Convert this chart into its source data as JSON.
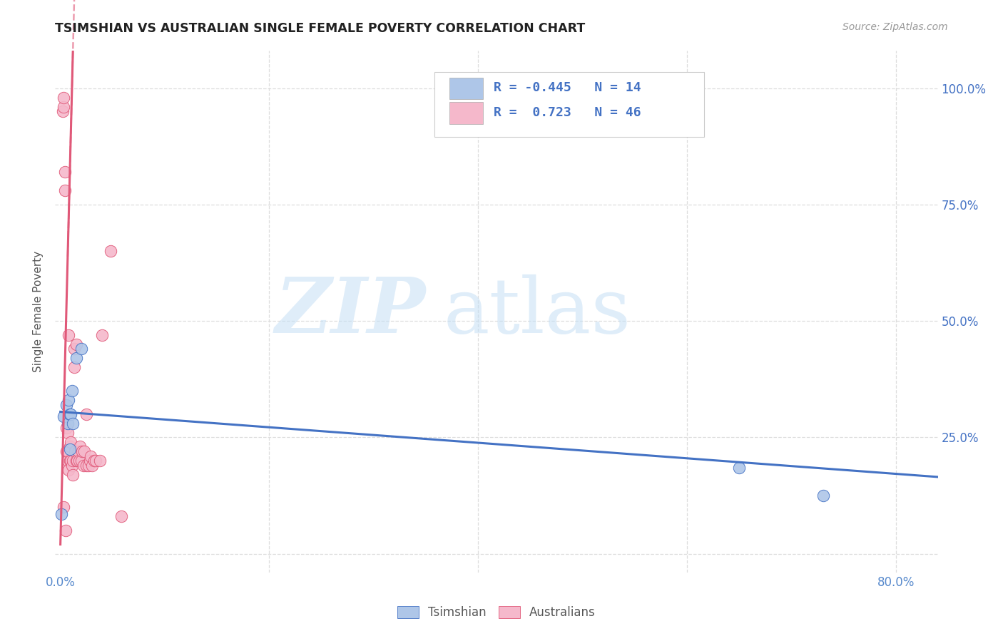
{
  "title": "TSIMSHIAN VS AUSTRALIAN SINGLE FEMALE POVERTY CORRELATION CHART",
  "source": "Source: ZipAtlas.com",
  "ylabel_label": "Single Female Poverty",
  "xlim": [
    -0.005,
    0.84
  ],
  "ylim": [
    -0.04,
    1.08
  ],
  "tsimshian_color": "#aec6e8",
  "australian_color": "#f5b8cb",
  "trend_blue": "#4472c4",
  "trend_pink": "#e05878",
  "legend_R_blue": "-0.445",
  "legend_N_blue": "14",
  "legend_R_pink": "0.723",
  "legend_N_pink": "46",
  "tsimshian_x": [
    0.001,
    0.003,
    0.006,
    0.007,
    0.008,
    0.009,
    0.009,
    0.01,
    0.011,
    0.012,
    0.015,
    0.02,
    0.65,
    0.73
  ],
  "tsimshian_y": [
    0.085,
    0.295,
    0.32,
    0.28,
    0.33,
    0.3,
    0.225,
    0.3,
    0.35,
    0.28,
    0.42,
    0.44,
    0.185,
    0.125
  ],
  "australian_x": [
    0.002,
    0.003,
    0.003,
    0.004,
    0.005,
    0.006,
    0.006,
    0.007,
    0.007,
    0.007,
    0.008,
    0.008,
    0.009,
    0.009,
    0.01,
    0.01,
    0.011,
    0.012,
    0.012,
    0.013,
    0.013,
    0.014,
    0.015,
    0.015,
    0.016,
    0.017,
    0.018,
    0.019,
    0.02,
    0.021,
    0.022,
    0.023,
    0.025,
    0.025,
    0.027,
    0.028,
    0.029,
    0.03,
    0.032,
    0.034,
    0.038,
    0.04,
    0.048,
    0.058,
    0.003,
    0.004
  ],
  "australian_y": [
    0.95,
    0.96,
    0.98,
    0.82,
    0.05,
    0.22,
    0.27,
    0.2,
    0.22,
    0.26,
    0.18,
    0.47,
    0.2,
    0.23,
    0.2,
    0.24,
    0.19,
    0.17,
    0.2,
    0.4,
    0.44,
    0.22,
    0.2,
    0.45,
    0.2,
    0.22,
    0.2,
    0.23,
    0.2,
    0.22,
    0.19,
    0.22,
    0.19,
    0.3,
    0.19,
    0.2,
    0.21,
    0.19,
    0.2,
    0.2,
    0.2,
    0.47,
    0.65,
    0.08,
    0.1,
    0.78
  ],
  "pink_trend_x0": 0.0,
  "pink_trend_y0": 0.02,
  "pink_trend_x1": 0.012,
  "pink_trend_y1": 1.08,
  "blue_trend_x0": 0.0,
  "blue_trend_y0": 0.305,
  "blue_trend_x1": 0.84,
  "blue_trend_y1": 0.165,
  "bg_color": "#ffffff",
  "grid_color": "#dddddd"
}
